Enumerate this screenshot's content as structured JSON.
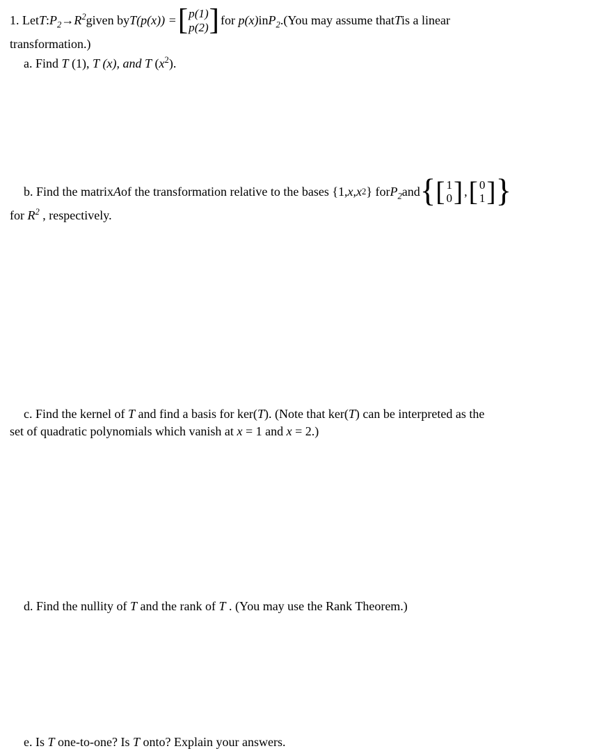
{
  "problem": {
    "number": "1.",
    "intro_pre": "Let ",
    "T": "T",
    "colon": " : ",
    "P2": "P",
    "P2_sub": "2",
    "arrow": " → ",
    "R": "R",
    "R_sup": "2",
    "given_by": " given by ",
    "Tpx": "T",
    "Tpx_arg": "(p(x)) = ",
    "vec_top": "p(1)",
    "vec_bot": "p(2)",
    "for_px": " for ",
    "px": "p(x)",
    "in": " in ",
    "P2_2": "P",
    "P2_2_sub": "2",
    "period": ".",
    "assume": " (You may assume that ",
    "T_assume": "T",
    "is_linear": " is a linear",
    "transformation": "transformation.)"
  },
  "part_a": {
    "label": "a. Find ",
    "T1": "T",
    "T1_arg": "(1), ",
    "Tx": "T",
    "Tx_arg": "(x), and ",
    "Tx2": "T",
    "Tx2_arg_open": "(",
    "x": "x",
    "x_sup": "2",
    "Tx2_arg_close": ")."
  },
  "part_b": {
    "label": "b. Find the matrix ",
    "A": "A",
    "text1": " of the transformation relative to the bases {1, ",
    "x": "x",
    "comma": ", ",
    "x2": "x",
    "x2_sup": "2",
    "text2": "} for ",
    "P2": "P",
    "P2_sub": "2",
    "and": " and ",
    "v1_top": "1",
    "v1_bot": "0",
    "v2_top": "0",
    "v2_bot": "1",
    "line2_pre": "for ",
    "R": "R",
    "R_sup": "2",
    "line2_post": ", respectively."
  },
  "part_c": {
    "text1": "c. Find the kernel of ",
    "T1": "T",
    "text2": " and find a basis for ker(",
    "T2": "T",
    "text3": "). (Note that ker(",
    "T3": "T",
    "text4": ") can be interpreted as the",
    "line2": "set of quadratic polynomials which vanish at ",
    "x1": "x",
    "eq1": " = 1 and ",
    "x2": "x",
    "eq2": " = 2.)"
  },
  "part_d": {
    "text1": "d. Find the nullity of ",
    "T1": "T",
    "text2": " and the rank of ",
    "T2": "T",
    "text3": ". (You may use the Rank Theorem.)"
  },
  "part_e": {
    "text1": "e. Is ",
    "T1": "T",
    "text2": " one-to-one? Is ",
    "T2": "T",
    "text3": " onto? Explain your answers."
  },
  "colors": {
    "text": "#000000",
    "background": "#ffffff"
  },
  "typography": {
    "font_family": "Times New Roman",
    "base_fontsize_pt": 14
  }
}
